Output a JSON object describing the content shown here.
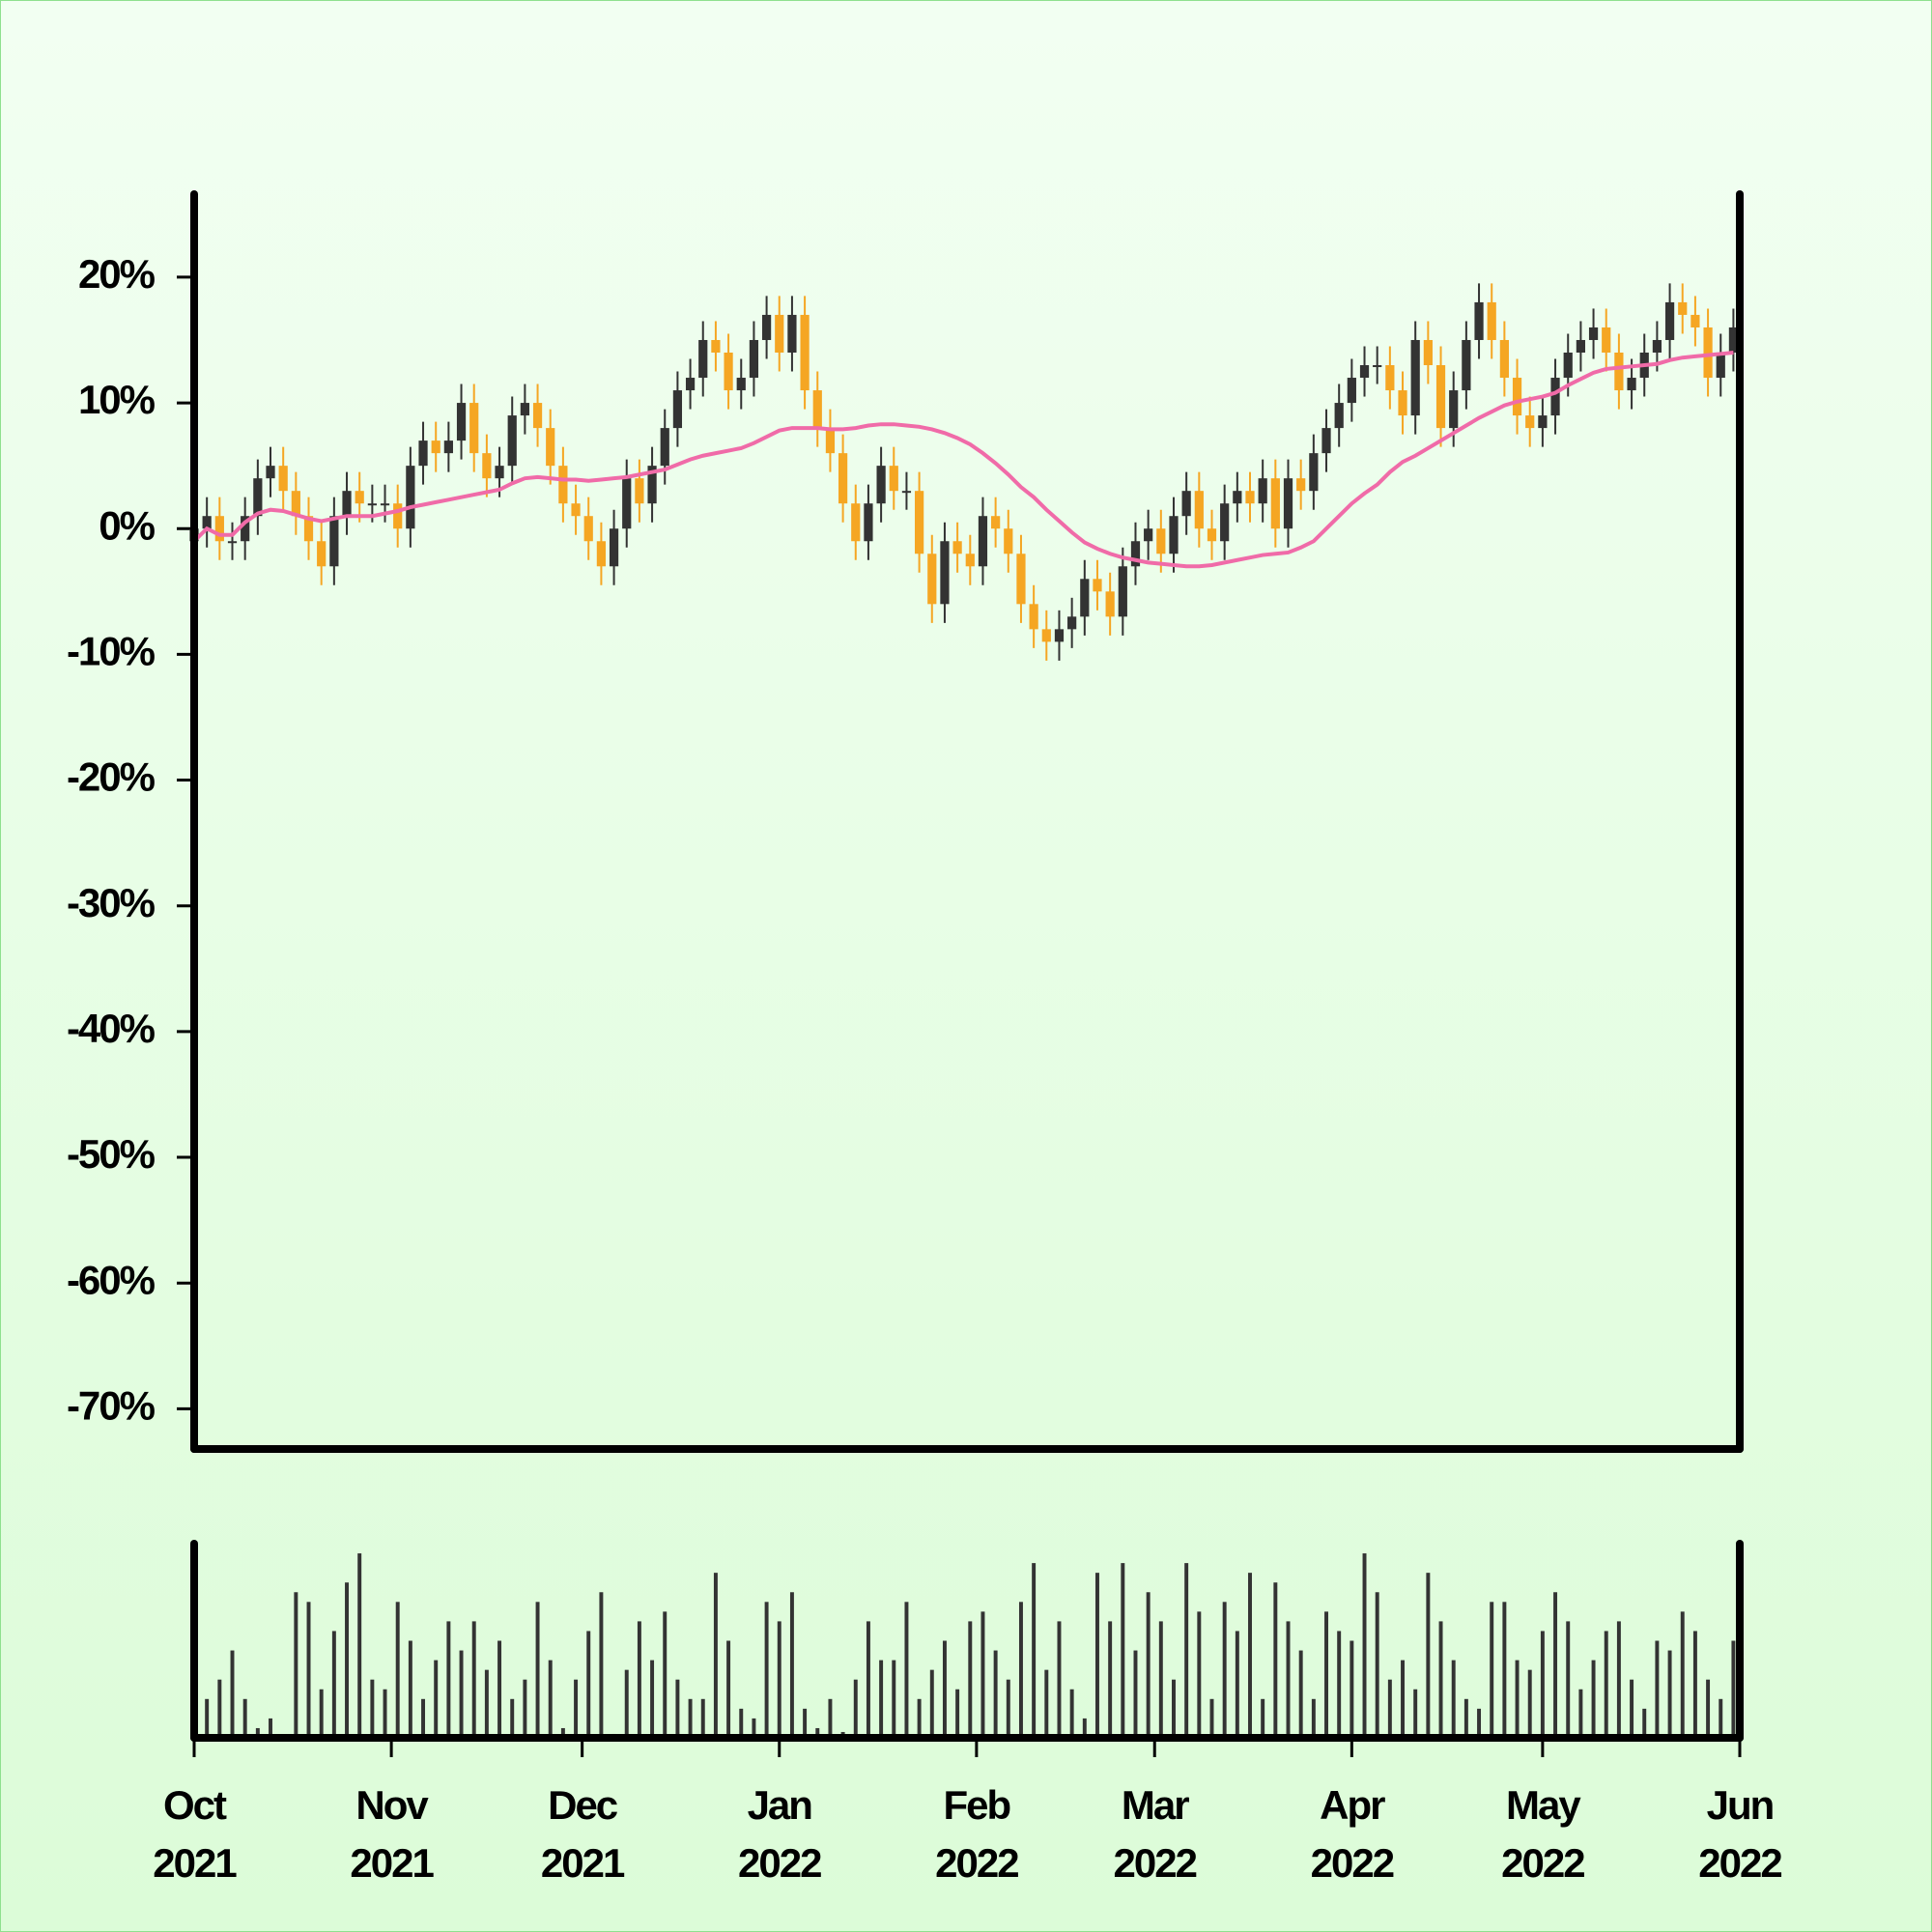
{
  "chart_data": {
    "type": "candlestick",
    "x": [
      0,
      2,
      4,
      6,
      8,
      10,
      12,
      14,
      16,
      18,
      20,
      22,
      24,
      26,
      28,
      30,
      32,
      34,
      36,
      38,
      40,
      42,
      44,
      46,
      48,
      50,
      52,
      54,
      56,
      58,
      60,
      62,
      64,
      66,
      68,
      70,
      72,
      74,
      76,
      78,
      80,
      82,
      84,
      86,
      88,
      90,
      92,
      94,
      96,
      98,
      100,
      102,
      104,
      106,
      108,
      110,
      112,
      114,
      116,
      118,
      120,
      122,
      124,
      126,
      128,
      130,
      132,
      134,
      136,
      138,
      140,
      142,
      144,
      146,
      148,
      150,
      152,
      154,
      156,
      158,
      160,
      162,
      164,
      166,
      168,
      170,
      172,
      174,
      176,
      178,
      180,
      182,
      184,
      186,
      188,
      190,
      192,
      194,
      196,
      198,
      200,
      202,
      204,
      206,
      208,
      210,
      212,
      214,
      216,
      218,
      220,
      222,
      224,
      226,
      228,
      230,
      232,
      234,
      236,
      238,
      240,
      242
    ],
    "open": [
      -1,
      0,
      1,
      -1,
      -1,
      1,
      4,
      5,
      3,
      1,
      -1,
      -3,
      1,
      3,
      2,
      2,
      2,
      0,
      5,
      7,
      6,
      7,
      10,
      6,
      4,
      5,
      9,
      10,
      8,
      5,
      2,
      1,
      -1,
      -3,
      0,
      4,
      2,
      5,
      8,
      11,
      12,
      15,
      14,
      11,
      12,
      15,
      17,
      14,
      17,
      11,
      8,
      6,
      2,
      -1,
      2,
      5,
      3,
      3,
      -2,
      -6,
      -1,
      -2,
      -3,
      1,
      0,
      -2,
      -6,
      -8,
      -9,
      -8,
      -7,
      -4,
      -5,
      -7,
      -3,
      -1,
      0,
      -2,
      1,
      3,
      0,
      -1,
      2,
      3,
      2,
      4,
      0,
      4,
      3,
      6,
      8,
      10,
      12,
      13,
      13,
      11,
      9,
      15,
      13,
      8,
      11,
      15,
      18,
      15,
      12,
      9,
      8,
      9,
      12,
      14,
      15,
      16,
      14,
      11,
      12,
      14,
      15,
      18,
      17,
      16,
      12,
      14
    ],
    "high": [
      1.5,
      2.5,
      2.5,
      0.5,
      2.5,
      5.5,
      6.5,
      6.5,
      4.5,
      2.5,
      0.5,
      2.5,
      4.5,
      4.5,
      3.5,
      3.5,
      3.5,
      6.5,
      8.5,
      8.5,
      8.5,
      11.5,
      11.5,
      7.5,
      6.5,
      10.5,
      11.5,
      11.5,
      9.5,
      6.5,
      3.5,
      2.5,
      0.5,
      1.5,
      5.5,
      5.5,
      6.5,
      9.5,
      12.5,
      13.5,
      16.5,
      16.5,
      15.5,
      13.5,
      16.5,
      18.5,
      18.5,
      18.5,
      18.5,
      12.5,
      9.5,
      7.5,
      3.5,
      3.5,
      6.5,
      6.5,
      4.5,
      4.5,
      -0.5,
      0.5,
      0.5,
      -0.5,
      2.5,
      2.5,
      1.5,
      -0.5,
      -4.5,
      -6.5,
      -6.5,
      -5.5,
      -2.5,
      -2.5,
      -3.5,
      -1.5,
      0.5,
      1.5,
      1.5,
      2.5,
      4.5,
      4.5,
      1.5,
      3.5,
      4.5,
      4.5,
      5.5,
      5.5,
      5.5,
      5.5,
      7.5,
      9.5,
      11.5,
      13.5,
      14.5,
      14.5,
      14.5,
      12.5,
      16.5,
      16.5,
      14.5,
      12.5,
      16.5,
      19.5,
      19.5,
      16.5,
      13.5,
      10.5,
      10.5,
      13.5,
      15.5,
      16.5,
      17.5,
      17.5,
      15.5,
      13.5,
      15.5,
      16.5,
      19.5,
      19.5,
      18.5,
      17.5,
      15.5,
      17.5
    ],
    "low": [
      -2.5,
      -1.5,
      -2.5,
      -2.5,
      -2.5,
      -0.5,
      2.5,
      1.5,
      -0.5,
      -2.5,
      -4.5,
      -4.5,
      -0.5,
      0.5,
      0.5,
      0.5,
      -1.5,
      -1.5,
      3.5,
      4.5,
      4.5,
      5.5,
      4.5,
      2.5,
      2.5,
      3.5,
      7.5,
      6.5,
      3.5,
      0.5,
      -0.5,
      -2.5,
      -4.5,
      -4.5,
      -1.5,
      0.5,
      0.5,
      3.5,
      6.5,
      9.5,
      10.5,
      12.5,
      9.5,
      9.5,
      10.5,
      13.5,
      12.5,
      12.5,
      9.5,
      6.5,
      4.5,
      0.5,
      -2.5,
      -2.5,
      0.5,
      1.5,
      1.5,
      -3.5,
      -7.5,
      -7.5,
      -3.5,
      -4.5,
      -4.5,
      -1.5,
      -3.5,
      -7.5,
      -9.5,
      -10.5,
      -10.5,
      -9.5,
      -8.5,
      -6.5,
      -8.5,
      -8.5,
      -4.5,
      -2.5,
      -3.5,
      -3.5,
      -0.5,
      -1.5,
      -2.5,
      -2.5,
      0.5,
      0.5,
      0.5,
      -1.5,
      -1.5,
      1.5,
      1.5,
      4.5,
      6.5,
      8.5,
      10.5,
      11.5,
      9.5,
      7.5,
      7.5,
      11.5,
      6.5,
      6.5,
      9.5,
      13.5,
      13.5,
      10.5,
      7.5,
      6.5,
      6.5,
      7.5,
      10.5,
      12.5,
      13.5,
      12.5,
      9.5,
      9.5,
      10.5,
      12.5,
      13.5,
      15.5,
      14.5,
      10.5,
      10.5,
      12.5
    ],
    "close": [
      0,
      1,
      -1,
      -1,
      1,
      4,
      5,
      3,
      1,
      -1,
      -3,
      1,
      3,
      2,
      2,
      2,
      0,
      5,
      7,
      6,
      7,
      10,
      6,
      4,
      5,
      9,
      10,
      8,
      5,
      2,
      1,
      -1,
      -3,
      0,
      4,
      2,
      5,
      8,
      11,
      12,
      15,
      14,
      11,
      12,
      15,
      17,
      14,
      17,
      11,
      8,
      6,
      2,
      -1,
      2,
      5,
      3,
      3,
      -2,
      -6,
      -1,
      -2,
      -3,
      1,
      0,
      -2,
      -6,
      -8,
      -9,
      -8,
      -7,
      -4,
      -5,
      -7,
      -3,
      -1,
      0,
      -2,
      1,
      3,
      0,
      -1,
      2,
      3,
      2,
      4,
      0,
      4,
      3,
      6,
      8,
      10,
      12,
      13,
      13,
      11,
      9,
      15,
      13,
      8,
      11,
      15,
      18,
      15,
      12,
      9,
      8,
      9,
      12,
      14,
      15,
      16,
      14,
      11,
      12,
      14,
      15,
      18,
      17,
      16,
      12,
      14,
      16
    ],
    "up_color": "#333333",
    "down_color": "#f5a623",
    "ma": {
      "color": "#f06ba8",
      "values": [
        -1,
        0,
        -0.5,
        -0.5,
        0.5,
        1.2,
        1.5,
        1.4,
        1.1,
        0.8,
        0.6,
        0.8,
        1,
        1,
        1,
        1.2,
        1.4,
        1.7,
        1.9,
        2.1,
        2.3,
        2.5,
        2.7,
        2.9,
        3.1,
        3.6,
        4,
        4.1,
        4,
        3.9,
        3.9,
        3.8,
        3.9,
        4,
        4.1,
        4.3,
        4.5,
        4.7,
        5.1,
        5.5,
        5.8,
        6,
        6.2,
        6.4,
        6.8,
        7.3,
        7.8,
        8,
        8,
        8,
        7.9,
        7.9,
        8,
        8.2,
        8.3,
        8.3,
        8.2,
        8.1,
        7.9,
        7.6,
        7.2,
        6.7,
        6,
        5.2,
        4.3,
        3.3,
        2.5,
        1.5,
        0.6,
        -0.3,
        -1.1,
        -1.6,
        -2,
        -2.3,
        -2.5,
        -2.7,
        -2.8,
        -2.9,
        -3,
        -3,
        -2.9,
        -2.7,
        -2.5,
        -2.3,
        -2.1,
        -2,
        -1.9,
        -1.5,
        -1,
        0,
        1,
        2,
        2.8,
        3.5,
        4.5,
        5.3,
        5.8,
        6.4,
        7,
        7.6,
        8.2,
        8.8,
        9.3,
        9.8,
        10.1,
        10.3,
        10.5,
        10.8,
        11.4,
        11.9,
        12.4,
        12.7,
        12.8,
        12.9,
        13,
        13.1,
        13.4,
        13.6,
        13.7,
        13.8,
        13.9,
        14
      ]
    },
    "volume": {
      "color": "#333333",
      "ylim": [
        0,
        100
      ],
      "values": [
        80,
        20,
        30,
        45,
        20,
        5,
        10,
        1,
        75,
        70,
        25,
        55,
        80,
        95,
        30,
        25,
        70,
        50,
        20,
        40,
        60,
        45,
        60,
        35,
        50,
        20,
        30,
        70,
        40,
        5,
        30,
        55,
        75,
        2,
        35,
        60,
        40,
        65,
        30,
        20,
        20,
        85,
        50,
        15,
        10,
        70,
        60,
        75,
        15,
        5,
        20,
        3,
        30,
        60,
        40,
        40,
        70,
        20,
        35,
        50,
        25,
        60,
        65,
        45,
        30,
        70,
        90,
        35,
        60,
        25,
        10,
        85,
        60,
        90,
        45,
        75,
        60,
        30,
        90,
        65,
        20,
        70,
        55,
        85,
        20,
        80,
        60,
        45,
        20,
        65,
        55,
        50,
        95,
        75,
        30,
        40,
        25,
        85,
        60,
        40,
        20,
        15,
        70,
        70,
        40,
        35,
        55,
        75,
        60,
        25,
        40,
        55,
        60,
        30,
        15,
        50,
        45,
        65,
        55,
        30,
        20,
        50
      ]
    },
    "xlim": [
      0,
      243
    ],
    "xticks": [
      {
        "value": 0,
        "label": "Oct\n2021"
      },
      {
        "value": 31,
        "label": "Nov\n2021"
      },
      {
        "value": 61,
        "label": "Dec\n2021"
      },
      {
        "value": 92,
        "label": "Jan\n2022"
      },
      {
        "value": 123,
        "label": "Feb\n2022"
      },
      {
        "value": 151,
        "label": "Mar\n2022"
      },
      {
        "value": 182,
        "label": "Apr\n2022"
      },
      {
        "value": 212,
        "label": "May\n2022"
      },
      {
        "value": 243,
        "label": "Jun\n2022"
      }
    ],
    "ylim": [
      -73.2,
      26.6
    ],
    "yticks": [
      {
        "value": -70,
        "label": "-70%"
      },
      {
        "value": -60,
        "label": "-60%"
      },
      {
        "value": -50,
        "label": "-50%"
      },
      {
        "value": -40,
        "label": "-40%"
      },
      {
        "value": -30,
        "label": "-30%"
      },
      {
        "value": -20,
        "label": "-20%"
      },
      {
        "value": -10,
        "label": "-10%"
      },
      {
        "value": 0,
        "label": "0%"
      },
      {
        "value": 10,
        "label": "10%"
      },
      {
        "value": 20,
        "label": "20%"
      }
    ]
  }
}
